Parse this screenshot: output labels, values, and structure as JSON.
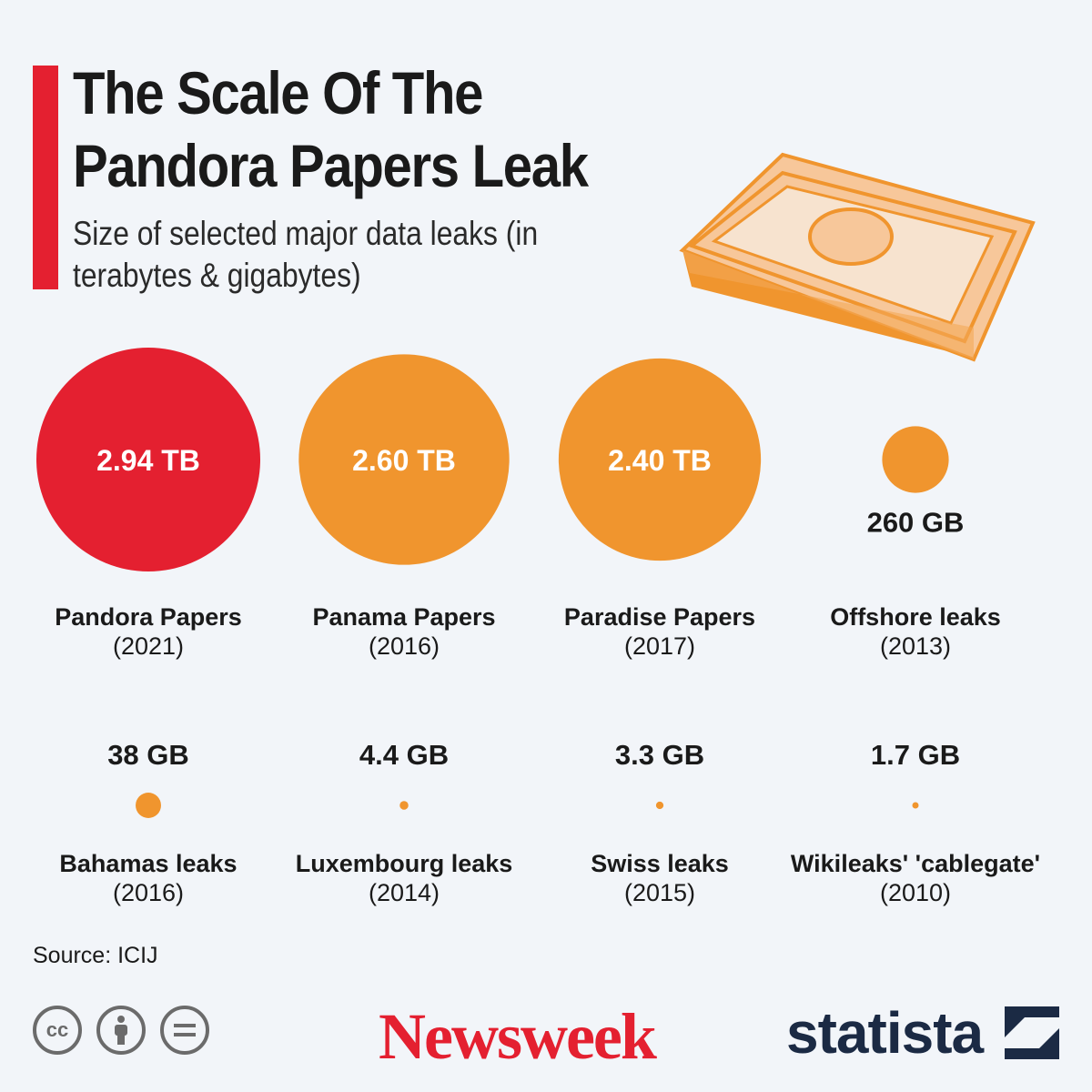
{
  "header": {
    "title": "The Scale Of The Pandora Papers Leak",
    "subtitle": "Size of selected major data leaks (in terabytes & gigabytes)"
  },
  "colors": {
    "accent": "#e42030",
    "orange": "#f0952e",
    "background": "#f2f5f9"
  },
  "chart_data": {
    "type": "bubble",
    "unit_note": "sizes in GB",
    "items": [
      {
        "name": "Pandora Papers",
        "year": "(2021)",
        "value_gb": 2940,
        "label": "2.94 TB",
        "color": "#e42030"
      },
      {
        "name": "Panama Papers",
        "year": "(2016)",
        "value_gb": 2600,
        "label": "2.60 TB",
        "color": "#f0952e"
      },
      {
        "name": "Paradise Papers",
        "year": "(2017)",
        "value_gb": 2400,
        "label": "2.40 TB",
        "color": "#f0952e"
      },
      {
        "name": "Offshore leaks",
        "year": "(2013)",
        "value_gb": 260,
        "label": "260 GB",
        "color": "#f0952e"
      },
      {
        "name": "Bahamas leaks",
        "year": "(2016)",
        "value_gb": 38,
        "label": "38 GB",
        "color": "#f0952e"
      },
      {
        "name": "Luxembourg leaks",
        "year": "(2014)",
        "value_gb": 4.4,
        "label": "4.4 GB",
        "color": "#f0952e"
      },
      {
        "name": "Swiss leaks",
        "year": "(2015)",
        "value_gb": 3.3,
        "label": "3.3 GB",
        "color": "#f0952e"
      },
      {
        "name": "Wikileaks' 'cablegate'",
        "year": "(2010)",
        "value_gb": 1.7,
        "label": "1.7 GB",
        "color": "#f0952e"
      }
    ]
  },
  "footer": {
    "source": "Source: ICIJ",
    "license_icons": [
      "cc-icon",
      "attribution-icon",
      "no-derivatives-icon"
    ],
    "brand_newsweek": "Newsweek",
    "brand_statista": "statista"
  }
}
